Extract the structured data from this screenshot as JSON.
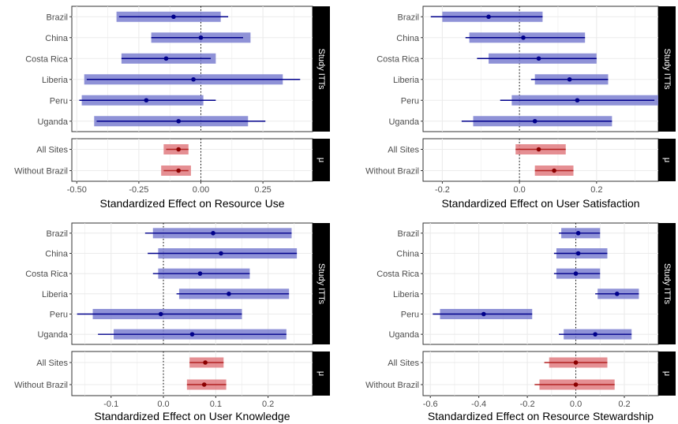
{
  "colors": {
    "study_band": "#7b7fd0",
    "study_line": "#00008b",
    "study_point": "#00008b",
    "pooled_band": "#e07b80",
    "pooled_line": "#b22222",
    "pooled_point": "#8b0000",
    "panel_bg": "#ffffff",
    "grid": "#ebebeb",
    "strip_bg": "#000000",
    "strip_text": "#ffffff"
  },
  "chart_data": [
    {
      "type": "forest",
      "xlabel": "Standardized Effect on Resource Use",
      "xlim": [
        -0.52,
        0.45
      ],
      "xticks": [
        -0.5,
        -0.25,
        0.0,
        0.25
      ],
      "xtick_labels": [
        "-0.50",
        "-0.25",
        "0.00",
        "0.25"
      ],
      "reference_line": 0,
      "facets": [
        {
          "strip_label": "Study ITTs",
          "rows": [
            {
              "label": "Brazil",
              "estimate": -0.11,
              "ci90": [
                -0.33,
                0.11
              ],
              "ci95": [
                -0.34,
                0.08
              ]
            },
            {
              "label": "China",
              "estimate": 0.0,
              "ci90": [
                -0.2,
                0.17
              ],
              "ci95": [
                -0.2,
                0.2
              ]
            },
            {
              "label": "Costa Rica",
              "estimate": -0.14,
              "ci90": [
                -0.32,
                0.04
              ],
              "ci95": [
                -0.32,
                0.06
              ]
            },
            {
              "label": "Liberia",
              "estimate": -0.03,
              "ci90": [
                -0.46,
                0.4
              ],
              "ci95": [
                -0.47,
                0.33
              ]
            },
            {
              "label": "Peru",
              "estimate": -0.22,
              "ci90": [
                -0.49,
                0.06
              ],
              "ci95": [
                -0.48,
                0.01
              ]
            },
            {
              "label": "Uganda",
              "estimate": -0.09,
              "ci90": [
                -0.42,
                0.26
              ],
              "ci95": [
                -0.43,
                0.19
              ]
            }
          ]
        },
        {
          "strip_label": "μ",
          "rows": [
            {
              "label": "All Sites",
              "estimate": -0.09,
              "ci90": [
                -0.14,
                -0.05
              ],
              "ci95": [
                -0.15,
                -0.05
              ]
            },
            {
              "label": "Without Brazil",
              "estimate": -0.09,
              "ci90": [
                -0.15,
                -0.05
              ],
              "ci95": [
                -0.16,
                -0.04
              ]
            }
          ]
        }
      ]
    },
    {
      "type": "forest",
      "xlabel": "Standardized Effect on User Satisfaction",
      "xlim": [
        -0.25,
        0.36
      ],
      "xticks": [
        -0.2,
        0.0,
        0.2
      ],
      "xtick_labels": [
        "-0.2",
        "0.0",
        "0.2"
      ],
      "reference_line": 0,
      "facets": [
        {
          "strip_label": "Study ITTs",
          "rows": [
            {
              "label": "Brazil",
              "estimate": -0.08,
              "ci90": [
                -0.23,
                0.06
              ],
              "ci95": [
                -0.2,
                0.06
              ]
            },
            {
              "label": "China",
              "estimate": 0.01,
              "ci90": [
                -0.14,
                0.17
              ],
              "ci95": [
                -0.13,
                0.17
              ]
            },
            {
              "label": "Costa Rica",
              "estimate": 0.05,
              "ci90": [
                -0.11,
                0.2
              ],
              "ci95": [
                -0.08,
                0.2
              ]
            },
            {
              "label": "Liberia",
              "estimate": 0.13,
              "ci90": [
                0.03,
                0.23
              ],
              "ci95": [
                0.04,
                0.23
              ]
            },
            {
              "label": "Peru",
              "estimate": 0.15,
              "ci90": [
                -0.05,
                0.35
              ],
              "ci95": [
                -0.02,
                0.36
              ]
            },
            {
              "label": "Uganda",
              "estimate": 0.04,
              "ci90": [
                -0.15,
                0.24
              ],
              "ci95": [
                -0.12,
                0.24
              ]
            }
          ]
        },
        {
          "strip_label": "μ",
          "rows": [
            {
              "label": "All Sites",
              "estimate": 0.05,
              "ci90": [
                -0.01,
                0.12
              ],
              "ci95": [
                -0.01,
                0.12
              ]
            },
            {
              "label": "Without Brazil",
              "estimate": 0.09,
              "ci90": [
                0.04,
                0.14
              ],
              "ci95": [
                0.04,
                0.14
              ]
            }
          ]
        }
      ]
    },
    {
      "type": "forest",
      "xlabel": "Standardized Effect on User Knowledge",
      "xlim": [
        -0.175,
        0.285
      ],
      "xticks": [
        -0.1,
        0.0,
        0.1,
        0.2
      ],
      "xtick_labels": [
        "-0.1",
        "0.0",
        "0.1",
        "0.2"
      ],
      "reference_line": 0,
      "facets": [
        {
          "strip_label": "Study ITTs",
          "rows": [
            {
              "label": "Brazil",
              "estimate": 0.095,
              "ci90": [
                -0.035,
                0.245
              ],
              "ci95": [
                -0.02,
                0.245
              ]
            },
            {
              "label": "China",
              "estimate": 0.11,
              "ci90": [
                -0.03,
                0.255
              ],
              "ci95": [
                -0.01,
                0.255
              ]
            },
            {
              "label": "Costa Rica",
              "estimate": 0.07,
              "ci90": [
                -0.02,
                0.165
              ],
              "ci95": [
                -0.01,
                0.165
              ]
            },
            {
              "label": "Liberia",
              "estimate": 0.125,
              "ci90": [
                0.025,
                0.24
              ],
              "ci95": [
                0.03,
                0.24
              ]
            },
            {
              "label": "Peru",
              "estimate": -0.005,
              "ci90": [
                -0.165,
                0.15
              ],
              "ci95": [
                -0.135,
                0.15
              ]
            },
            {
              "label": "Uganda",
              "estimate": 0.055,
              "ci90": [
                -0.125,
                0.235
              ],
              "ci95": [
                -0.095,
                0.235
              ]
            }
          ]
        },
        {
          "strip_label": "μ",
          "rows": [
            {
              "label": "All Sites",
              "estimate": 0.08,
              "ci90": [
                0.05,
                0.115
              ],
              "ci95": [
                0.05,
                0.115
              ]
            },
            {
              "label": "Without Brazil",
              "estimate": 0.078,
              "ci90": [
                0.045,
                0.12
              ],
              "ci95": [
                0.045,
                0.12
              ]
            }
          ]
        }
      ]
    },
    {
      "type": "forest",
      "xlabel": "Standardized Effect on Resource Stewardship",
      "xlim": [
        -0.63,
        0.34
      ],
      "xticks": [
        -0.6,
        -0.4,
        -0.2,
        0.0,
        0.2
      ],
      "xtick_labels": [
        "-0.6",
        "-0.4",
        "-0.2",
        "0.0",
        "0.2"
      ],
      "reference_line": 0,
      "facets": [
        {
          "strip_label": "Study ITTs",
          "rows": [
            {
              "label": "Brazil",
              "estimate": 0.01,
              "ci90": [
                -0.07,
                0.1
              ],
              "ci95": [
                -0.06,
                0.1
              ]
            },
            {
              "label": "China",
              "estimate": 0.01,
              "ci90": [
                -0.09,
                0.13
              ],
              "ci95": [
                -0.08,
                0.13
              ]
            },
            {
              "label": "Costa Rica",
              "estimate": 0.0,
              "ci90": [
                -0.09,
                0.1
              ],
              "ci95": [
                -0.08,
                0.1
              ]
            },
            {
              "label": "Liberia",
              "estimate": 0.17,
              "ci90": [
                0.08,
                0.26
              ],
              "ci95": [
                0.09,
                0.26
              ]
            },
            {
              "label": "Peru",
              "estimate": -0.38,
              "ci90": [
                -0.59,
                -0.18
              ],
              "ci95": [
                -0.56,
                -0.18
              ]
            },
            {
              "label": "Uganda",
              "estimate": 0.08,
              "ci90": [
                -0.07,
                0.23
              ],
              "ci95": [
                -0.05,
                0.23
              ]
            }
          ]
        },
        {
          "strip_label": "μ",
          "rows": [
            {
              "label": "All Sites",
              "estimate": 0.0,
              "ci90": [
                -0.13,
                0.13
              ],
              "ci95": [
                -0.11,
                0.13
              ]
            },
            {
              "label": "Without Brazil",
              "estimate": 0.0,
              "ci90": [
                -0.17,
                0.16
              ],
              "ci95": [
                -0.15,
                0.16
              ]
            }
          ]
        }
      ]
    }
  ]
}
